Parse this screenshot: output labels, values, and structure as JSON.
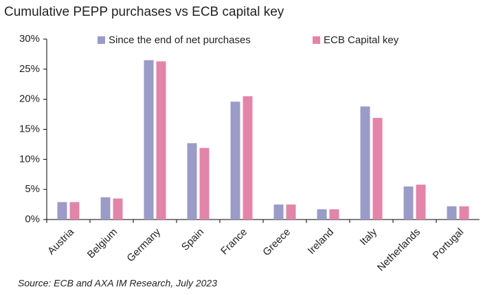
{
  "chart_data": {
    "type": "bar",
    "title": "Cumulative PEPP purchases vs ECB capital key",
    "source": "Source: ECB and AXA IM Research, July 2023",
    "categories": [
      "Austria",
      "Belgium",
      "Germany",
      "Spain",
      "France",
      "Greece",
      "Ireland",
      "Italy",
      "Netherlands",
      "Portugal"
    ],
    "series": [
      {
        "name": "Since the end of net purchases",
        "color": "#9b9bc8",
        "values": [
          2.9,
          3.7,
          26.5,
          12.7,
          19.6,
          2.5,
          1.7,
          18.8,
          5.5,
          2.2
        ]
      },
      {
        "name": "ECB Capital key",
        "color": "#e285a8",
        "values": [
          2.9,
          3.5,
          26.3,
          11.9,
          20.5,
          2.5,
          1.7,
          16.9,
          5.8,
          2.2
        ]
      }
    ],
    "ylim": [
      0,
      30
    ],
    "yticks": [
      {
        "value": 0,
        "label": "0%"
      },
      {
        "value": 5,
        "label": "5%"
      },
      {
        "value": 10,
        "label": "10%"
      },
      {
        "value": 15,
        "label": "15%"
      },
      {
        "value": 20,
        "label": "20%"
      },
      {
        "value": 25,
        "label": "25%"
      },
      {
        "value": 30,
        "label": "30%"
      }
    ],
    "legend": "top",
    "grid": false
  }
}
